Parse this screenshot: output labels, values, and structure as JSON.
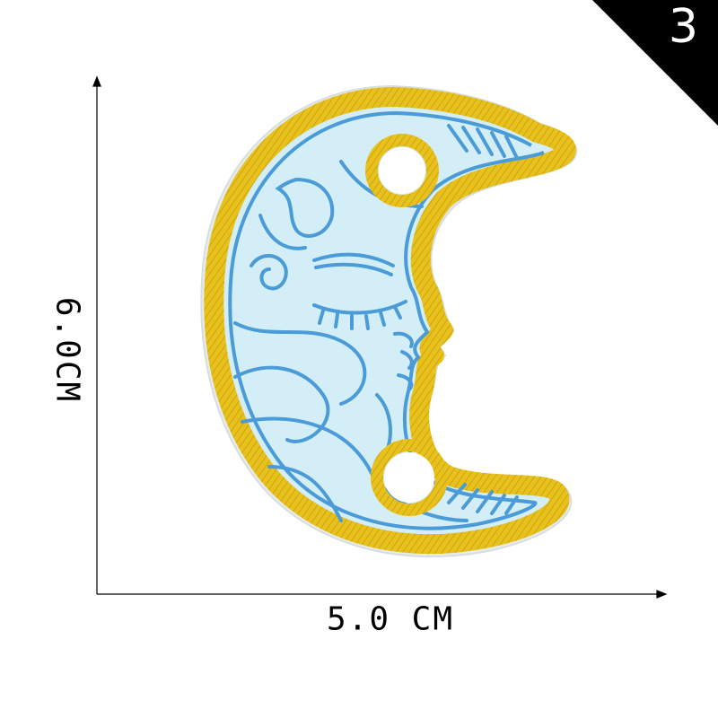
{
  "badge": {
    "number": "3"
  },
  "dimensions": {
    "height_label": "6.0CM",
    "width_label": "5.0 CM"
  },
  "colors": {
    "badge": "#000000",
    "border_gold": "#e8c21c",
    "border_gold_dark": "#c99a10",
    "fill_light_blue": "#d3eef6",
    "stitch_blue": "#4a9bd8",
    "backing": "#e7ecec"
  },
  "icons": [
    "moon-patch-icon",
    "axis-arrow-icon"
  ]
}
